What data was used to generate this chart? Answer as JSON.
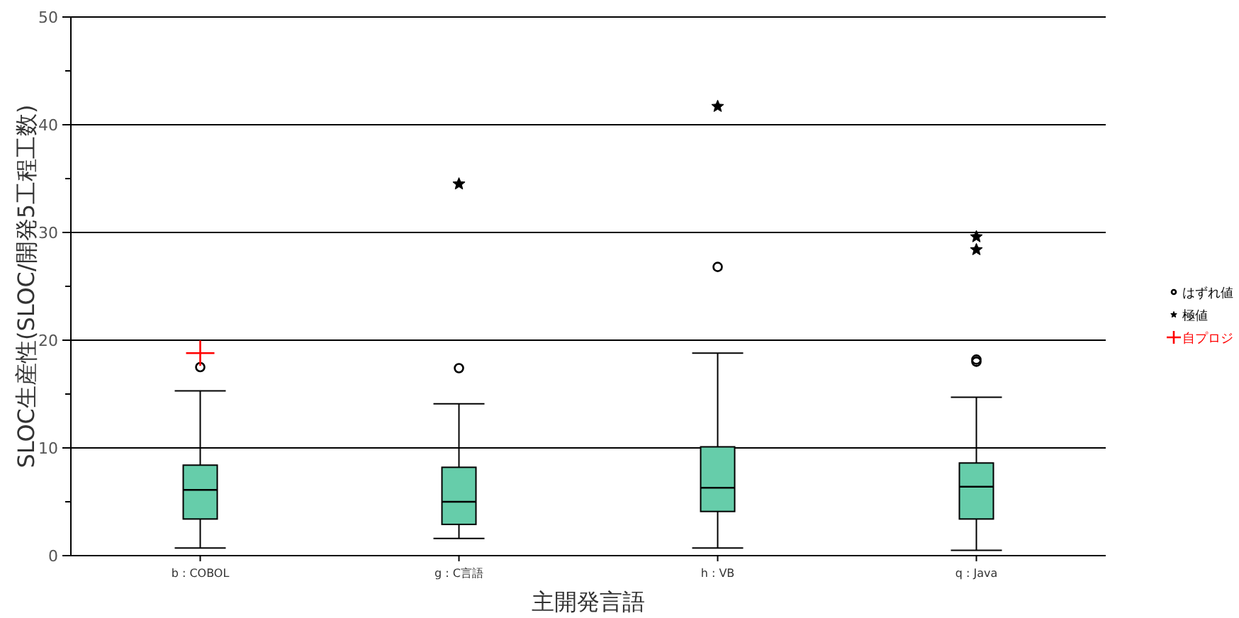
{
  "chart_data": {
    "type": "box",
    "xlabel": "主開発言語",
    "ylabel": "SLOC生産性(SLOC/開発5工程工数)",
    "categories": [
      "b : COBOL",
      "g : C言語",
      "h : VB",
      "q : Java"
    ],
    "ylim": [
      0,
      50
    ],
    "yticks": [
      0,
      {
        "value": 5,
        "label": null
      },
      10,
      {
        "value": 15,
        "label": null
      },
      20,
      {
        "value": 25,
        "label": null
      },
      30,
      {
        "value": 35,
        "label": null
      },
      40,
      {
        "value": 45,
        "label": null
      },
      50
    ],
    "grid": "y",
    "legend": "right",
    "series": [
      {
        "color": "#66cdaa",
        "boxes": [
          {
            "low": 0.7,
            "q1": 3.4,
            "median": 6.1,
            "q3": 8.4,
            "high": 15.3
          },
          {
            "low": 1.6,
            "q1": 2.9,
            "median": 5.0,
            "q3": 8.2,
            "high": 14.1
          },
          {
            "low": 0.7,
            "q1": 4.1,
            "median": 6.3,
            "q3": 10.1,
            "high": 18.8
          },
          {
            "low": 0.5,
            "q1": 3.4,
            "median": 6.4,
            "q3": 8.6,
            "high": 14.7
          }
        ]
      },
      {
        "type": "scatter",
        "name": "はずれ値",
        "marker": "circle",
        "color": "#000000",
        "x": [
          "b : COBOL",
          "g : C言語",
          "h : VB",
          "q : Java",
          "q : Java"
        ],
        "values": [
          17.5,
          17.4,
          26.8,
          18.0,
          18.2
        ]
      },
      {
        "type": "scatter",
        "name": "極値",
        "marker": "star",
        "color": "#000000",
        "x": [
          "g : C言語",
          "h : VB",
          "q : Java",
          "q : Java"
        ],
        "values": [
          34.5,
          41.7,
          29.6,
          28.4
        ]
      },
      {
        "type": "scatter",
        "name": "自プロジ",
        "marker": "cross",
        "color": "#ff0000",
        "x": [
          "b : COBOL"
        ],
        "values": [
          18.8
        ]
      }
    ]
  }
}
